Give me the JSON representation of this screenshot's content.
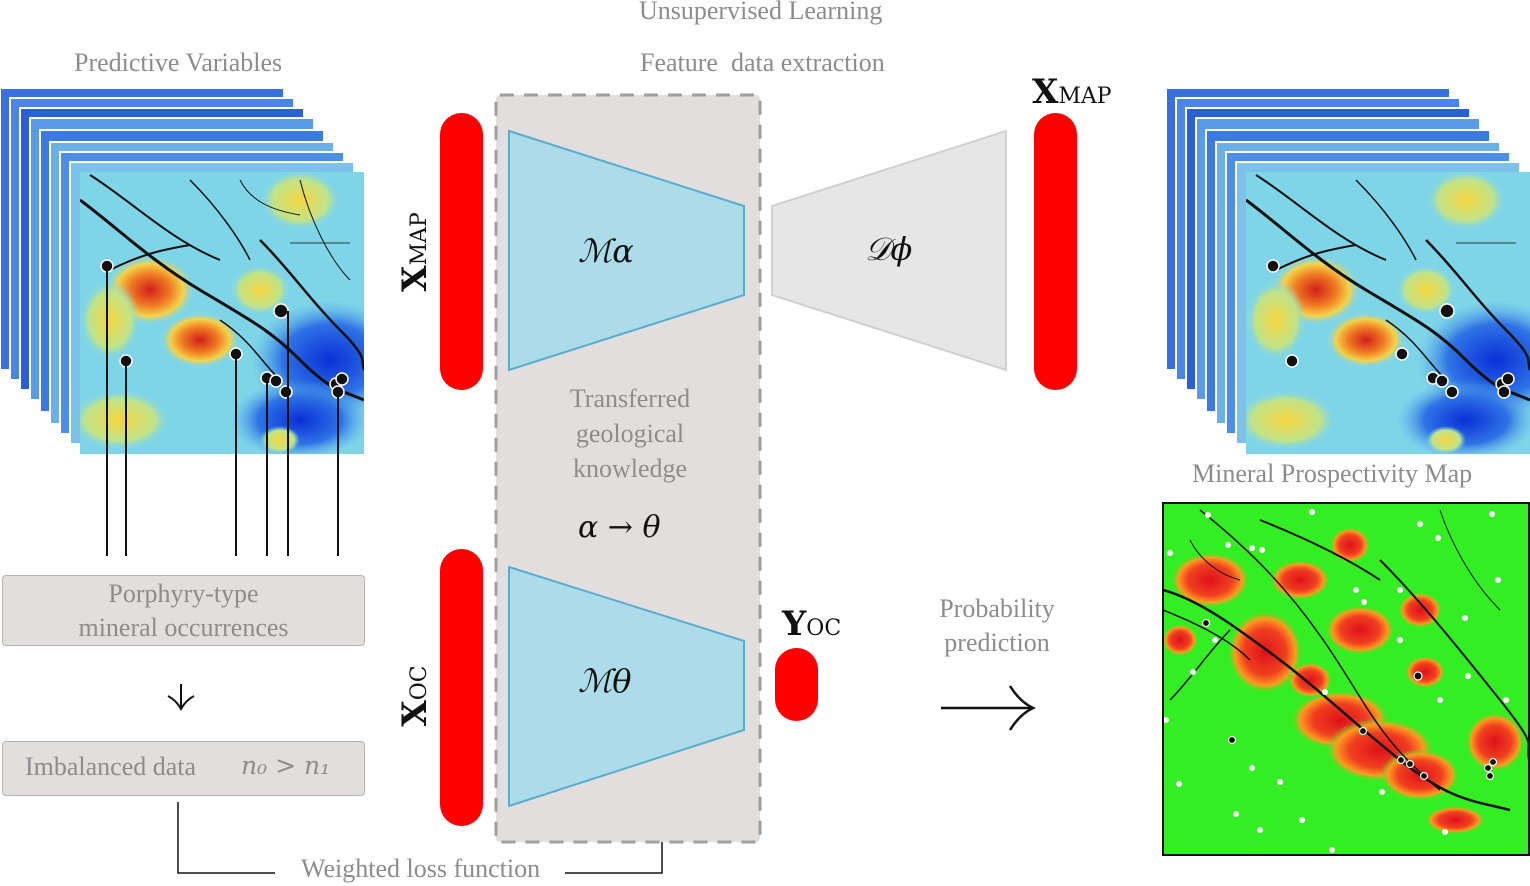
{
  "diagram": {
    "title_top": "Unsupervised Learning",
    "subtitle_top": "Feature  data extraction",
    "predictive_variables_label": "Predictive Variables",
    "occurrences_box": [
      "Porphyry-type",
      "mineral occurrences"
    ],
    "imbalanced_box": "Imbalanced data",
    "imbalance_expr": "n₀ > n₁",
    "weighted_loss_label": "Weighted loss function",
    "transfer_label": [
      "Transferred",
      "geological",
      "knowledge"
    ],
    "transfer_expr": "α → θ",
    "encoder_alpha": "ℳα",
    "decoder_phi": "𝒟ϕ",
    "encoder_theta": "ℳθ",
    "x_map_left": "X",
    "x_map_left_sub": "MAP",
    "x_map_right": "X",
    "x_map_right_sub": "MAP",
    "x_oc": "X",
    "x_oc_sub": "OC",
    "y_oc": "Y",
    "y_oc_sub": "OC",
    "probability_label": [
      "Probability",
      "prediction"
    ],
    "map_title": "Mineral Prospectivity Map",
    "colors": {
      "red_bar": "#ff0000",
      "encoder_fill": "#acdce9",
      "encoder_stroke": "#5aaccd",
      "decoder_fill": "#e6e6e6",
      "shaded_region": "#e3dede",
      "prospect_green": "#33ee22"
    }
  }
}
